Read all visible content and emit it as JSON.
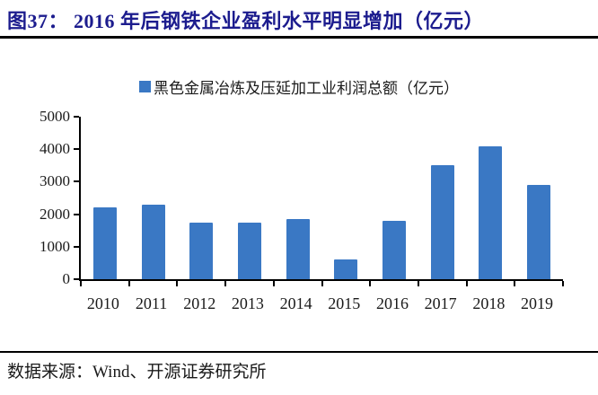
{
  "figure": {
    "title": "图37： 2016 年后钢铁企业盈利水平明显增加（亿元）",
    "source": "数据来源：Wind、开源证券研究所"
  },
  "colors": {
    "title": "#1C1C8E",
    "bar": "#3A78C4",
    "axis": "#000000",
    "text": "#1A1A1A"
  },
  "chart_data": {
    "type": "bar",
    "title": "图37： 2016 年后钢铁企业盈利水平明显增加（亿元）",
    "legend": "黑色金属冶炼及压延加工业利润总额（亿元）",
    "legend_position": "top",
    "categories": [
      "2010",
      "2011",
      "2012",
      "2013",
      "2014",
      "2015",
      "2016",
      "2017",
      "2018",
      "2019"
    ],
    "values": [
      2200,
      2280,
      1730,
      1730,
      1860,
      620,
      1800,
      3520,
      4090,
      2900
    ],
    "xlabel": "",
    "ylabel": "",
    "ylim": [
      0,
      5000
    ],
    "yticks": [
      0,
      1000,
      2000,
      3000,
      4000,
      5000
    ],
    "grid": false
  }
}
